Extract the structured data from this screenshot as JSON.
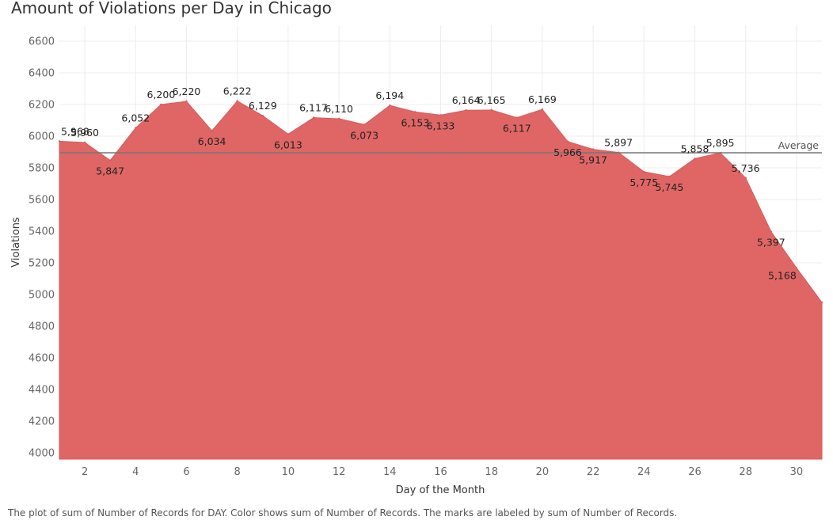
{
  "title": "Amount of Violations per Day in Chicago",
  "caption": "The plot of sum of Number of Records for DAY.  Color shows sum of Number of Records.  The marks are labeled by sum of Number of Records.",
  "colors": {
    "area": "#e06666",
    "area_stroke": "#d95a5a",
    "reference_line": "#777777",
    "grid": "#ececec"
  },
  "chart_data": {
    "type": "area",
    "title": "Amount of Violations per Day in Chicago",
    "xlabel": "Day of the Month",
    "ylabel": "Violations",
    "x": [
      1,
      2,
      3,
      4,
      5,
      6,
      7,
      8,
      9,
      10,
      11,
      12,
      13,
      14,
      15,
      16,
      17,
      18,
      19,
      20,
      21,
      22,
      23,
      24,
      25,
      26,
      27,
      28,
      29,
      30,
      31
    ],
    "values": [
      5968,
      5960,
      5847,
      6052,
      6200,
      6220,
      6034,
      6222,
      6129,
      6013,
      6117,
      6110,
      6073,
      6194,
      6153,
      6133,
      6164,
      6165,
      6117,
      6169,
      5966,
      5917,
      5897,
      5775,
      5745,
      5858,
      5895,
      5736,
      5397,
      5168,
      4950
    ],
    "data_labels": [
      "5,968",
      "5,960",
      "5,847",
      "6,052",
      "6,200",
      "6,220",
      "6,034",
      "6,222",
      "6,129",
      "6,013",
      "6,117",
      "6,110",
      "6,073",
      "6,194",
      "6,153",
      "6,133",
      "6,164",
      "6,165",
      "6,117",
      "6,169",
      "5,966",
      "5,917",
      "5,897",
      "5,775",
      "5,745",
      "5,858",
      "5,895",
      "5,736",
      "5,397",
      "5,168",
      ""
    ],
    "xticks": [
      2,
      4,
      6,
      8,
      10,
      12,
      14,
      16,
      18,
      20,
      22,
      24,
      26,
      28,
      30
    ],
    "yticks": [
      4000,
      4200,
      4400,
      4600,
      4800,
      5000,
      5200,
      5400,
      5600,
      5800,
      6000,
      6200,
      6400,
      6600
    ],
    "xlim": [
      1,
      31
    ],
    "ylim": [
      3960,
      6700
    ],
    "reference_line": {
      "label": "Average",
      "value": 5895
    },
    "grid": true
  }
}
